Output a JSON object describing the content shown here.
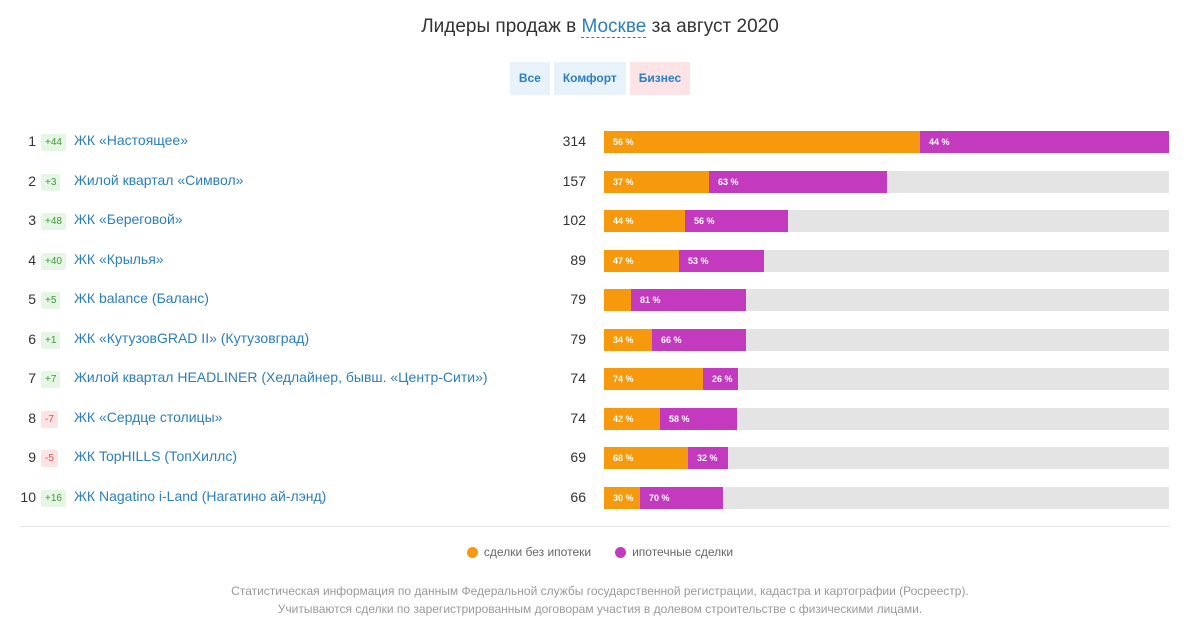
{
  "header": {
    "title_before": "Лидеры продаж в",
    "city": "Москве",
    "title_after": "за август 2020"
  },
  "filters": [
    {
      "label": "Все",
      "active": false
    },
    {
      "label": "Комфорт",
      "active": false
    },
    {
      "label": "Бизнес",
      "active": true
    }
  ],
  "colors": {
    "cash": "#f7990d",
    "mortgage": "#c43abf",
    "track": "#e4e4e4",
    "link": "#2a7ec2"
  },
  "chart_data": {
    "type": "bar",
    "stacked": true,
    "orientation": "horizontal",
    "categories": [
      "ЖК «Настоящее»",
      "Жилой квартал «Символ»",
      "ЖК «Береговой»",
      "ЖК «Крылья»",
      "ЖК balance (Баланс)",
      "ЖК «КутузовGRAD II» (Кутузовград)",
      "Жилой квартал HEADLINER (Хедлайнер, бывш. «Центр-Сити»)",
      "ЖК «Сердце столицы»",
      "ЖК TopHILLS (ТопХиллс)",
      "ЖК Nagatino i-Land (Нагатино ай-лэнд)"
    ],
    "ranks": [
      "1",
      "2",
      "3",
      "4",
      "5",
      "6",
      "7",
      "8",
      "9",
      "10"
    ],
    "changes": [
      "+44",
      "+3",
      "+48",
      "+40",
      "+5",
      "+1",
      "+7",
      "-7",
      "-5",
      "+16"
    ],
    "totals": [
      314,
      157,
      102,
      89,
      79,
      79,
      74,
      74,
      69,
      66
    ],
    "xlim": [
      0,
      314
    ],
    "series": [
      {
        "name": "сделки без ипотеки",
        "percent": [
          56,
          37,
          44,
          47,
          19,
          34,
          74,
          42,
          68,
          30
        ]
      },
      {
        "name": "ипотечные сделки",
        "percent": [
          44,
          63,
          56,
          53,
          81,
          66,
          26,
          58,
          32,
          70
        ]
      }
    ],
    "legend_position": "bottom"
  },
  "footnote": [
    "Статистическая информация по данным Федеральной службы государственной регистрации, кадастра и картографии (Росреестр).",
    "Учитываются сделки по зарегистрированным договорам участия в долевом строительстве с физическими лицами."
  ]
}
